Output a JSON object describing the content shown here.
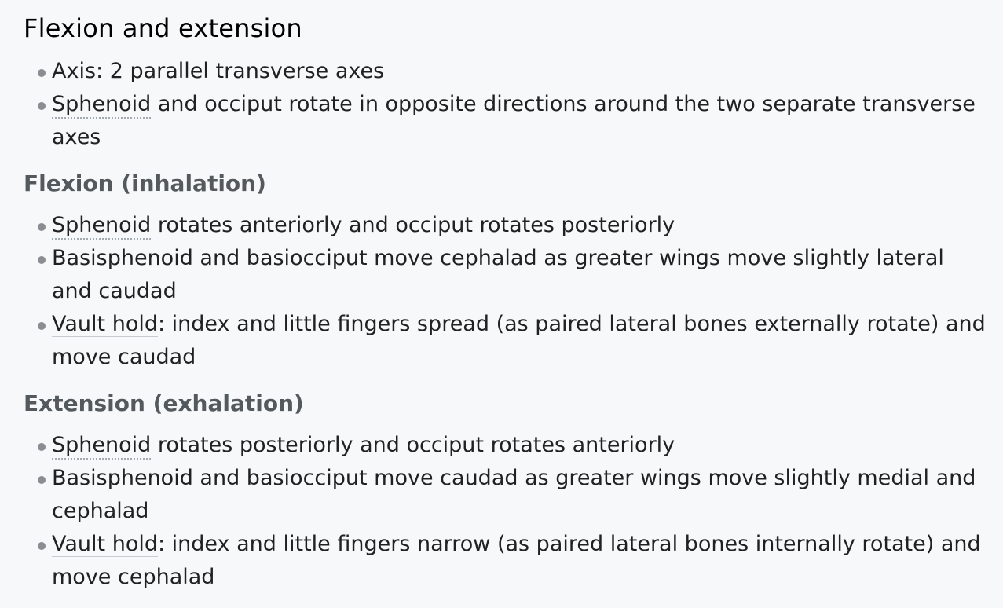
{
  "section": {
    "title": "Flexion and extension",
    "intro_items": [
      {
        "text": "Axis: 2 parallel transverse axes"
      },
      {
        "term": "Sphenoid",
        "text": " and occiput rotate in opposite directions around the two separate transverse axes"
      }
    ]
  },
  "flexion": {
    "title": "Flexion (inhalation)",
    "items": [
      {
        "term": "Sphenoid",
        "text": " rotates anteriorly and occiput rotates posteriorly"
      },
      {
        "text": "Basisphenoid and basiocciput move cephalad as greater wings move slightly lateral and caudad"
      },
      {
        "term": "Vault hold",
        "text": ": index and little fingers spread (as paired lateral bones externally rotate) and move caudad"
      }
    ]
  },
  "extension": {
    "title": "Extension (exhalation)",
    "items": [
      {
        "term": "Sphenoid",
        "text": " rotates posteriorly and occiput rotates anteriorly"
      },
      {
        "text": "Basisphenoid and basiocciput move caudad as greater wings move slightly medial and cephalad"
      },
      {
        "term": "Vault hold",
        "text": ": index and little fingers narrow (as paired lateral bones internally rotate) and move cephalad"
      }
    ]
  }
}
